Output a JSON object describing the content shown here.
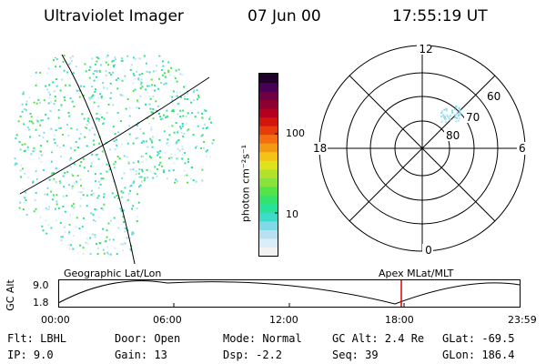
{
  "header": {
    "instrument": "Ultraviolet Imager",
    "date": "07 Jun 00",
    "time": "17:55:19 UT"
  },
  "colorbar": {
    "unit_label": "photon cm⁻²s⁻¹",
    "ticks": [
      "100",
      "10"
    ],
    "colors": [
      "#f2f2f2",
      "#d9eef6",
      "#b7e2f2",
      "#7fd9e6",
      "#3cdcc8",
      "#28e29a",
      "#34e26e",
      "#58e24a",
      "#8ae23c",
      "#b4e22c",
      "#e0e21c",
      "#f2c418",
      "#f29a14",
      "#f26e10",
      "#e63c0c",
      "#d2140c",
      "#b4001e",
      "#8c0032",
      "#6e0046",
      "#46005a",
      "#1e0028"
    ]
  },
  "left_panel": {
    "label": "Geographic Lat/Lon"
  },
  "right_panel": {
    "label": "Apex MLat/MLT",
    "mlt_labels": {
      "top": "12",
      "left": "18",
      "right": "6",
      "bottom": "0"
    },
    "lat_labels": [
      "60",
      "70",
      "80"
    ]
  },
  "timeline": {
    "axis_label": "GC Alt",
    "y_ticks": [
      "9.0",
      "1.8"
    ],
    "x_ticks": [
      "00:00",
      "06:00",
      "12:00",
      "18:00",
      "23:59"
    ],
    "marker_color": "#dd0000"
  },
  "status": {
    "flt": "Flt: LBHL",
    "ip": "IP:  9.0",
    "door": "Door: Open",
    "gain": "Gain: 13",
    "mode": "Mode: Normal",
    "dsp": "Dsp:    -2.2",
    "gcalt": "GC Alt: 2.4 Re",
    "seq": "Seq: 39",
    "glat": "GLat: -69.5",
    "glon": "GLon: 186.4"
  }
}
